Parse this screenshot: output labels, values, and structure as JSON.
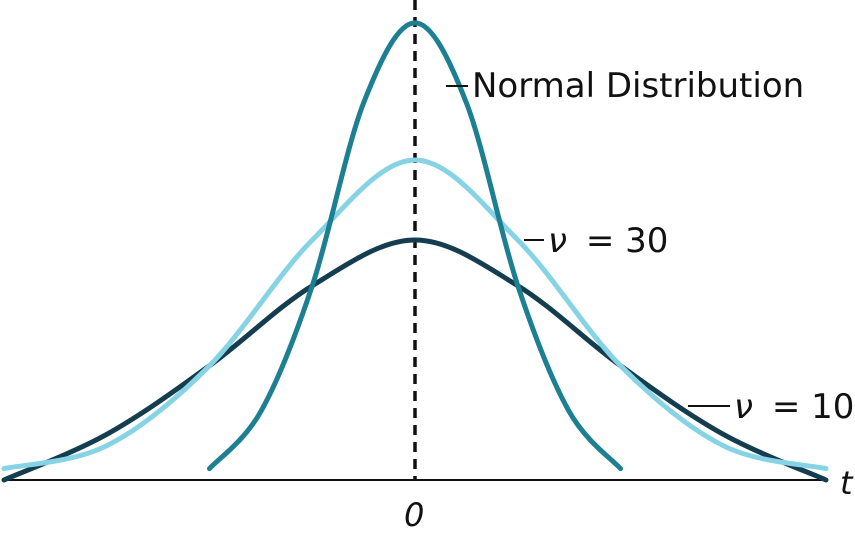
{
  "chart_data": {
    "type": "line",
    "title": "",
    "xlabel": "t",
    "ylabel": "",
    "xlim": [
      -4,
      4
    ],
    "ylim": [
      0,
      0.42
    ],
    "center_tick_label": "0",
    "center_line": {
      "x": 0,
      "style": "dashed"
    },
    "grid": false,
    "legend": "none",
    "series": [
      {
        "name": "Normal Distribution",
        "label": "Normal Distribution",
        "color": "#1c8092",
        "x": [
          -2,
          -1.5,
          -1,
          -0.5,
          0,
          0.5,
          1,
          1.5,
          2
        ],
        "y": [
          0.01,
          0.06,
          0.17,
          0.33,
          0.4,
          0.33,
          0.17,
          0.06,
          0.01
        ]
      },
      {
        "name": "ν = 30",
        "label_symbol": "ν",
        "label_value": "= 30",
        "color": "#85d3e4",
        "x": [
          -4,
          -3,
          -2,
          -1,
          0,
          1,
          2,
          3,
          4
        ],
        "y": [
          0.01,
          0.03,
          0.1,
          0.21,
          0.28,
          0.21,
          0.1,
          0.03,
          0.01
        ]
      },
      {
        "name": "ν = 10",
        "label_symbol": "ν",
        "label_value": "= 10",
        "color": "#143d4f",
        "x": [
          -4,
          -3,
          -2,
          -1,
          0,
          1,
          2,
          3,
          4
        ],
        "y": [
          0.0,
          0.04,
          0.1,
          0.17,
          0.21,
          0.17,
          0.1,
          0.04,
          0.0
        ]
      }
    ]
  }
}
